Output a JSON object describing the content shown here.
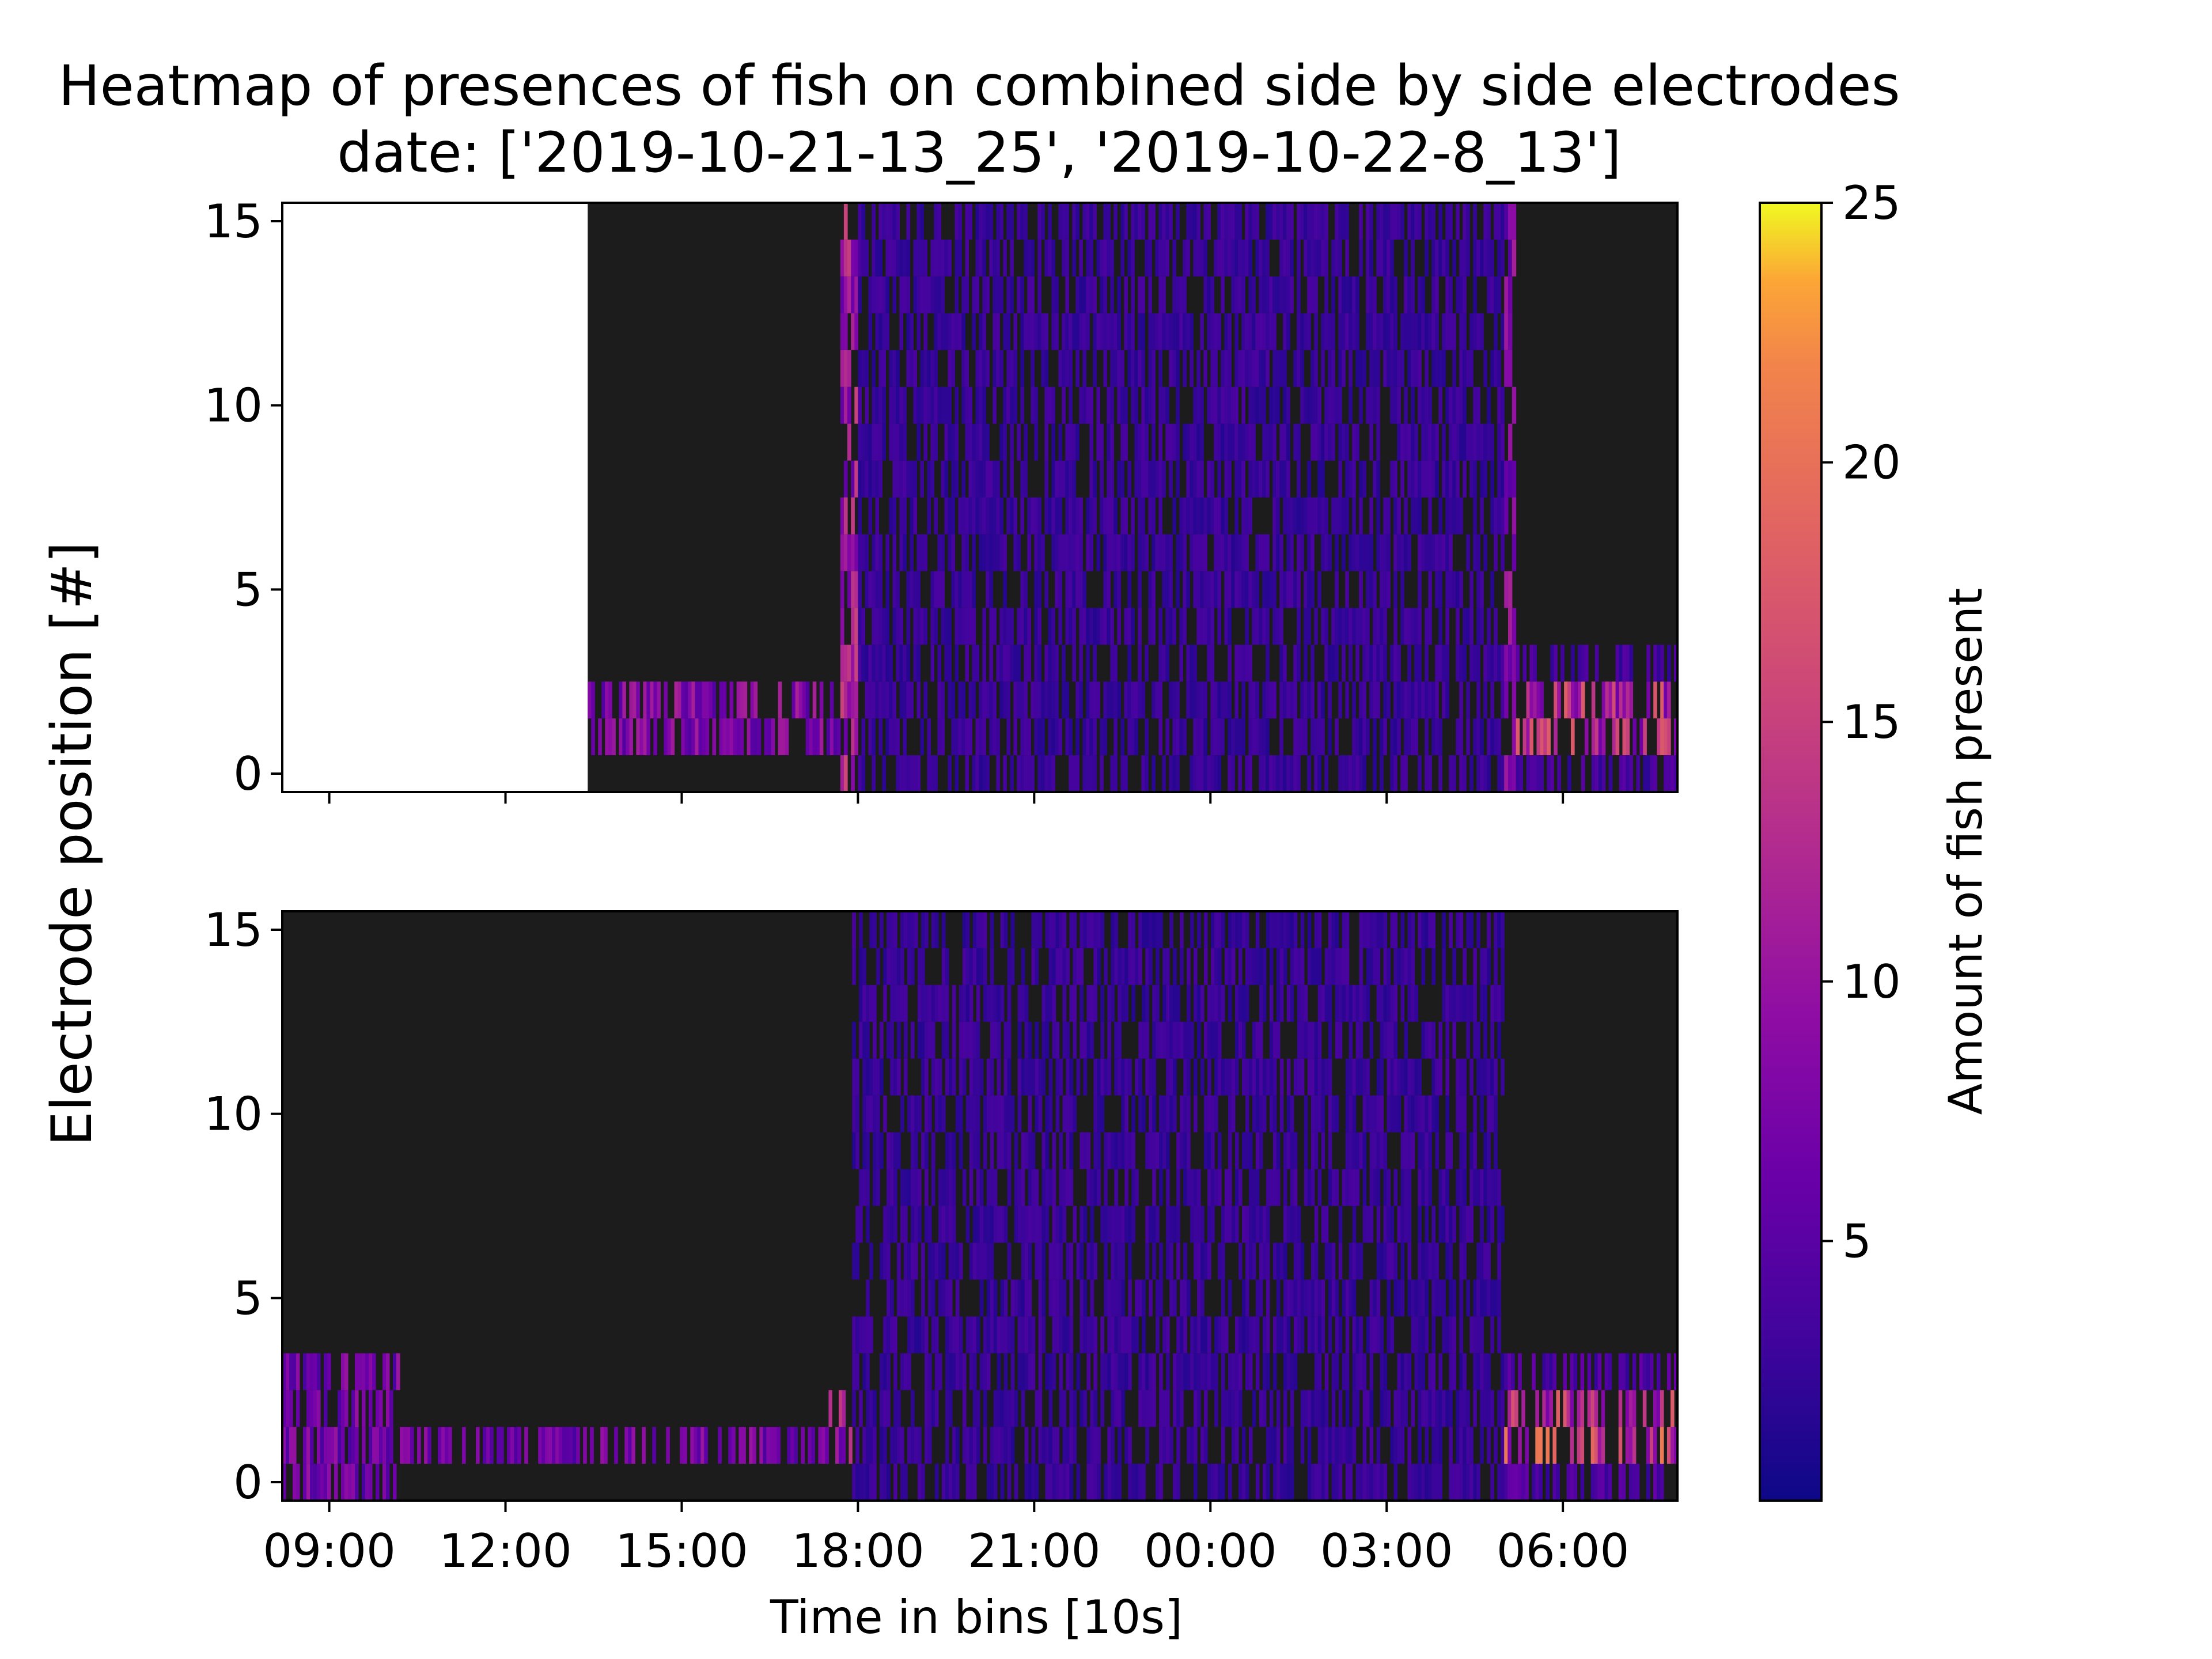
{
  "chart_data": {
    "type": "heatmap",
    "title": "Heatmap of presences of fish on combined side by side electrodes",
    "subtitle": "date: ['2019-10-21-13_25', '2019-10-22-8_13']",
    "xlabel": "Time in bins [10s]",
    "ylabel": "Electrode position [#]",
    "colorbar_label": "Amount of fish present",
    "colormap": "plasma",
    "background_color": "#1c1c1c",
    "missing_color": "#ffffff",
    "value_range": [
      0,
      25
    ],
    "x_ticks": [
      "09:00",
      "12:00",
      "15:00",
      "18:00",
      "21:00",
      "00:00",
      "03:00",
      "06:00"
    ],
    "x_tick_hours": [
      9,
      12,
      15,
      18,
      21,
      24,
      27,
      30
    ],
    "xlim_hours": [
      8.2,
      31.95
    ],
    "y_ticks": [
      0,
      5,
      10,
      15
    ],
    "ylim": [
      -0.5,
      15.5
    ],
    "colorbar_ticks": [
      5,
      10,
      15,
      20,
      25
    ],
    "panels": [
      {
        "name": "upper",
        "missing_until_hours": 13.4,
        "patterns": [
          {
            "start": 13.4,
            "end": 17.7,
            "rows": [
              1,
              2
            ],
            "value": 9
          },
          {
            "start": 17.7,
            "end": 18.0,
            "rows": [
              0,
              1,
              2,
              3,
              4,
              5,
              6,
              7,
              8,
              9,
              10,
              11,
              12,
              13,
              14,
              15
            ],
            "value": 12
          },
          {
            "start": 18.0,
            "end": 29.0,
            "rows": [
              0,
              1,
              2,
              3,
              4,
              5,
              6,
              7,
              8,
              9,
              10,
              11,
              12,
              13,
              14,
              15
            ],
            "value": 3
          },
          {
            "start": 29.0,
            "end": 29.2,
            "rows": [
              0,
              1,
              2,
              3,
              4,
              5,
              6,
              7,
              8,
              9,
              10,
              11,
              12,
              13,
              14,
              15
            ],
            "value": 9
          },
          {
            "start": 29.2,
            "end": 31.95,
            "rows": [
              1,
              2
            ],
            "value": 14
          },
          {
            "start": 29.2,
            "end": 31.95,
            "rows": [
              0,
              3
            ],
            "value": 4
          }
        ]
      },
      {
        "name": "lower",
        "missing_until_hours": 8.2,
        "patterns": [
          {
            "start": 8.2,
            "end": 17.5,
            "rows": [
              1
            ],
            "value": 8
          },
          {
            "start": 8.2,
            "end": 10.2,
            "rows": [
              0,
              2,
              3
            ],
            "value": 8
          },
          {
            "start": 17.5,
            "end": 17.9,
            "rows": [
              1,
              2
            ],
            "value": 12
          },
          {
            "start": 17.9,
            "end": 29.0,
            "rows": [
              0,
              1,
              2,
              3,
              4,
              5,
              6,
              7,
              8,
              9,
              10,
              11,
              12,
              13,
              14,
              15
            ],
            "value": 3
          },
          {
            "start": 29.0,
            "end": 31.95,
            "rows": [
              1,
              2
            ],
            "value": 16
          },
          {
            "start": 29.0,
            "end": 31.95,
            "rows": [
              0,
              3
            ],
            "value": 5
          }
        ]
      }
    ]
  }
}
